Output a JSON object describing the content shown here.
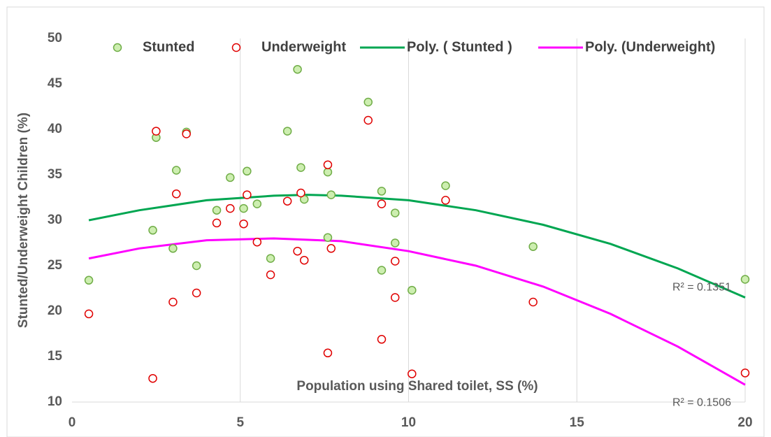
{
  "chart_data": {
    "type": "scatter",
    "x_label": "Population using Shared toilet, SS (%)",
    "y_label": "Stunted/Underweight Children (%)",
    "xlim": [
      0,
      20
    ],
    "xticks": [
      0,
      5,
      10,
      15,
      20
    ],
    "ylim": [
      10,
      50
    ],
    "yticks": [
      10,
      15,
      20,
      25,
      30,
      35,
      40,
      45,
      50
    ],
    "grid": "x",
    "series": [
      {
        "name": "Stunted",
        "color": "#cdeeb0",
        "edge": "#70ad47",
        "x": [
          0.5,
          2.4,
          2.5,
          3.0,
          3.1,
          3.4,
          3.7,
          4.3,
          4.7,
          5.1,
          5.2,
          5.5,
          5.9,
          6.4,
          6.7,
          6.8,
          6.9,
          7.6,
          7.6,
          7.7,
          8.8,
          9.2,
          9.2,
          9.6,
          9.6,
          10.1,
          11.1,
          13.7,
          20
        ],
        "values": [
          23.4,
          28.9,
          39.1,
          26.9,
          35.5,
          39.7,
          25.0,
          31.1,
          34.7,
          31.3,
          35.4,
          31.8,
          25.8,
          39.8,
          46.6,
          35.8,
          32.3,
          35.3,
          28.1,
          32.8,
          43.0,
          33.2,
          24.5,
          30.8,
          27.5,
          22.3,
          33.8,
          27.1,
          23.5
        ]
      },
      {
        "name": "Underweight",
        "color": "#ffffff",
        "edge": "#e00000",
        "x": [
          0.5,
          2.4,
          2.5,
          3.0,
          3.1,
          3.4,
          3.7,
          4.3,
          4.7,
          5.1,
          5.2,
          5.5,
          5.9,
          6.4,
          6.7,
          6.8,
          6.9,
          7.6,
          7.6,
          7.7,
          8.8,
          9.2,
          9.2,
          9.6,
          9.6,
          10.1,
          11.1,
          13.7,
          20
        ],
        "values": [
          19.7,
          12.6,
          39.8,
          21.0,
          32.9,
          39.5,
          22.0,
          29.7,
          31.3,
          29.6,
          32.8,
          27.6,
          24.0,
          32.1,
          26.6,
          33.0,
          25.6,
          15.4,
          36.1,
          26.9,
          41.0,
          31.8,
          16.9,
          25.5,
          21.5,
          13.1,
          32.2,
          21.0,
          13.2
        ]
      }
    ],
    "trendlines": [
      {
        "name": "Poly. ( Stunted )",
        "color": "#00a651",
        "label": "R² = 0.1351",
        "x": [
          0.5,
          2,
          4,
          6,
          7,
          8,
          10,
          12,
          14,
          16,
          18,
          20
        ],
        "values": [
          30.0,
          31.1,
          32.2,
          32.7,
          32.8,
          32.7,
          32.2,
          31.1,
          29.5,
          27.4,
          24.7,
          21.5
        ]
      },
      {
        "name": "Poly. (Underweight)",
        "color": "#ff00ff",
        "label": "R² = 0.1506",
        "x": [
          0.5,
          2,
          4,
          6,
          8,
          10,
          12,
          14,
          16,
          18,
          20
        ],
        "values": [
          25.8,
          26.9,
          27.8,
          28.0,
          27.7,
          26.6,
          25.0,
          22.7,
          19.7,
          16.1,
          11.9
        ]
      }
    ]
  }
}
